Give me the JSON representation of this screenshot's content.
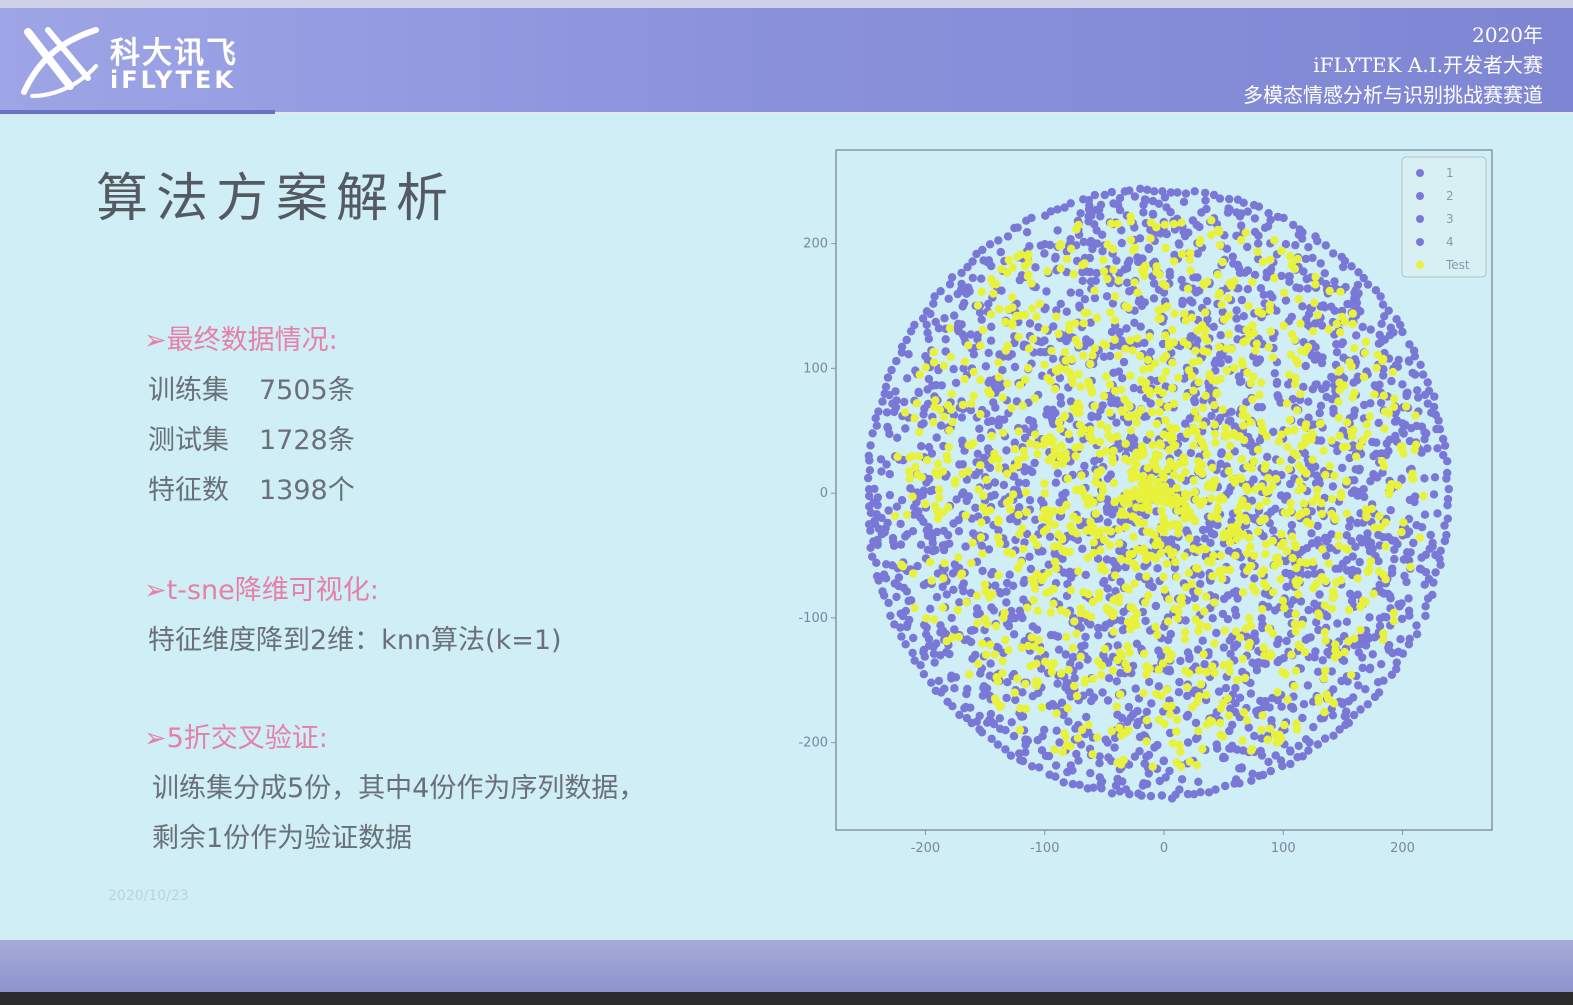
{
  "header": {
    "logo_cn": "科大讯飞",
    "logo_en": "iFLYTEK",
    "event_year": "2020年",
    "event_name": "iFLYTEK A.I.开发者大赛",
    "event_track": "多模态情感分析与识别挑战赛赛道"
  },
  "slide": {
    "title": "算法方案解析",
    "sections": [
      {
        "heading": "➢最终数据情况:"
      },
      {
        "heading": "➢t-sne降维可视化:"
      },
      {
        "heading": "➢5折交叉验证:"
      }
    ],
    "data_stats": [
      {
        "label": "训练集",
        "value": "7505条"
      },
      {
        "label": "测试集",
        "value": "1728条"
      },
      {
        "label": "特征数",
        "value": "1398个"
      }
    ],
    "tsne_text": "特征维度降到2维：knn算法(k=1)",
    "cv_text_1": "训练集分成5份，其中4份作为序列数据，",
    "cv_text_2": "剩余1份作为验证数据",
    "date": "2020/10/23"
  },
  "colors": {
    "banner": "#8c93dc",
    "slide_bg": "#cfeef5",
    "heading_pink": "#e680a8",
    "point_purple": "#7a78d6",
    "point_yellow": "#e8f23a"
  },
  "chart_data": {
    "type": "scatter",
    "title": "",
    "xlabel": "",
    "ylabel": "",
    "xlim": [
      -275,
      275
    ],
    "ylim": [
      -270,
      275
    ],
    "x_ticks": [
      "-200",
      "-100",
      "0",
      "100",
      "200"
    ],
    "y_ticks": [
      "200",
      "100",
      "0",
      "-100",
      "-200"
    ],
    "x_tick_values": [
      -200,
      -100,
      0,
      100,
      200
    ],
    "y_tick_values": [
      200,
      100,
      0,
      -100,
      -200
    ],
    "legend_position": "top-right",
    "series": [
      {
        "name": "1",
        "color": "#7a78d6",
        "region": "disk",
        "radius": 245,
        "center": [
          -5,
          0
        ]
      },
      {
        "name": "2",
        "color": "#7a78d6",
        "region": "disk",
        "radius": 245,
        "center": [
          -5,
          0
        ]
      },
      {
        "name": "3",
        "color": "#7a78d6",
        "region": "disk",
        "radius": 245,
        "center": [
          -5,
          0
        ]
      },
      {
        "name": "4",
        "color": "#7a78d6",
        "region": "disk",
        "radius": 245,
        "center": [
          -5,
          0
        ]
      },
      {
        "name": "Test",
        "color": "#e8f23a",
        "region": "disk",
        "radius": 225,
        "center": [
          -5,
          0
        ]
      }
    ]
  }
}
